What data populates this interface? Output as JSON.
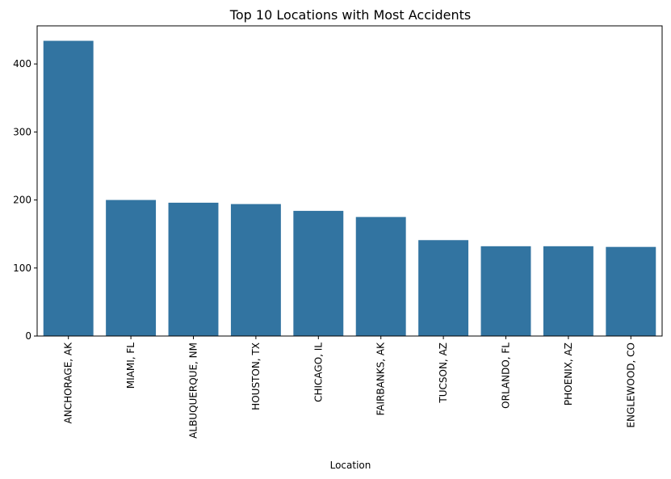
{
  "chart_data": {
    "type": "bar",
    "title": "Top 10 Locations with Most Accidents",
    "xlabel": "Location",
    "ylabel": "",
    "categories": [
      "ANCHORAGE, AK",
      "MIAMI, FL",
      "ALBUQUERQUE, NM",
      "HOUSTON, TX",
      "CHICAGO, IL",
      "FAIRBANKS, AK",
      "TUCSON, AZ",
      "ORLANDO, FL",
      "PHOENIX, AZ",
      "ENGLEWOOD, CO"
    ],
    "values": [
      434,
      200,
      196,
      194,
      184,
      175,
      141,
      132,
      132,
      131
    ],
    "ylim": [
      0,
      456
    ],
    "yticks": [
      0,
      100,
      200,
      300,
      400
    ],
    "bar_color": "#3274a1",
    "grid": false,
    "legend": "none"
  }
}
